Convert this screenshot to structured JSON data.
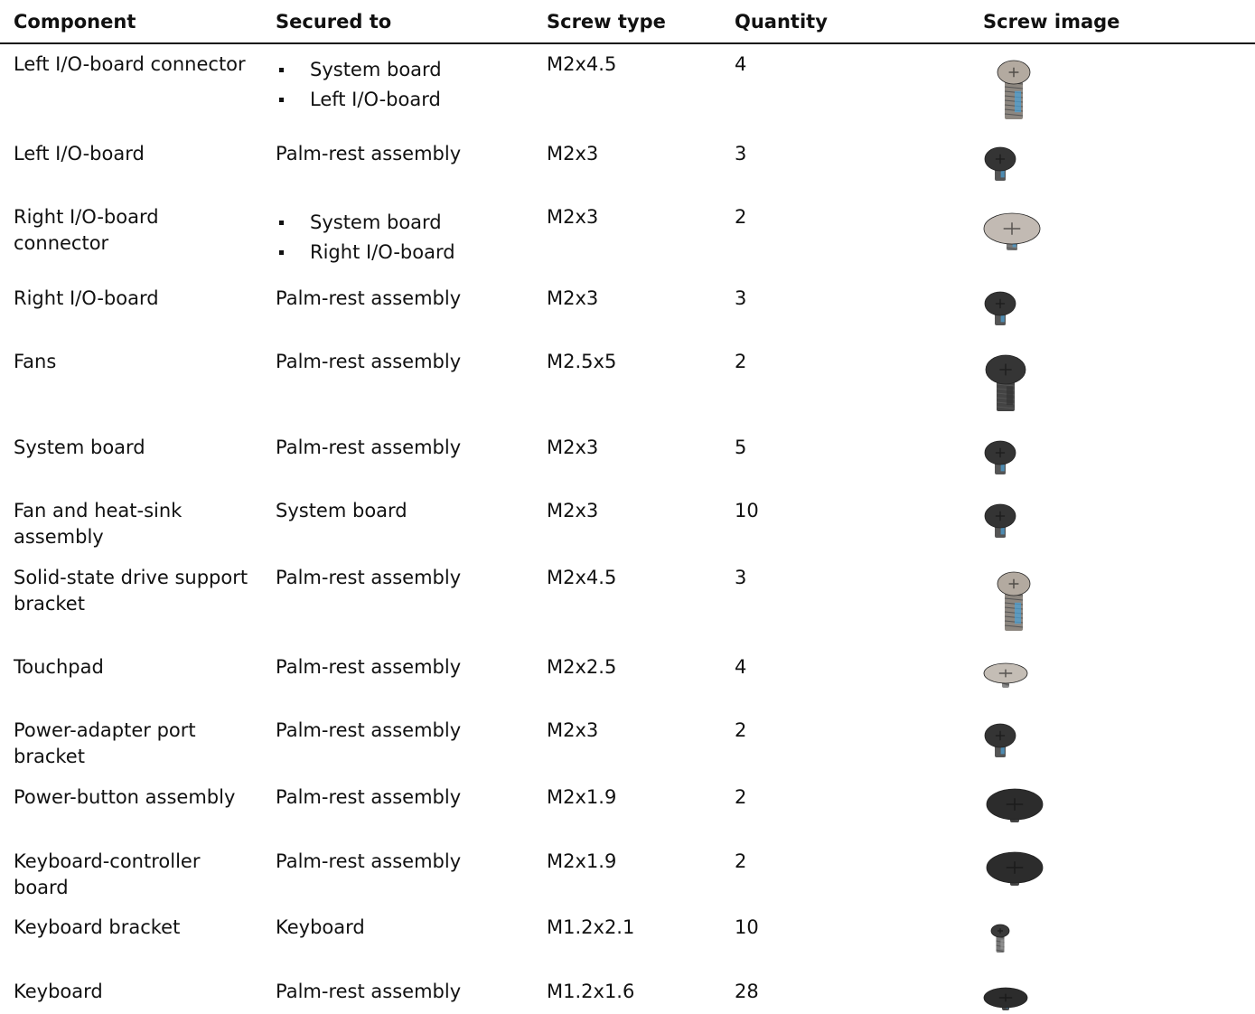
{
  "table": {
    "header": [
      "Component",
      "Secured to",
      "Screw type",
      "Quantity",
      "Screw image"
    ],
    "rows": [
      {
        "component": "Left I/O-board connector",
        "secured_to": [
          "System board",
          "Left I/O-board"
        ],
        "screw_type": "M2x4.5",
        "quantity": "4"
      },
      {
        "component": "Left I/O-board",
        "secured_to": "Palm-rest assembly",
        "screw_type": "M2x3",
        "quantity": "3"
      },
      {
        "component": "Right I/O-board connector",
        "secured_to": [
          "System board",
          "Right I/O-board"
        ],
        "screw_type": "M2x3",
        "quantity": "2"
      },
      {
        "component": "Right I/O-board",
        "secured_to": "Palm-rest assembly",
        "screw_type": "M2x3",
        "quantity": "3"
      },
      {
        "component": "Fans",
        "secured_to": "Palm-rest assembly",
        "screw_type": "M2.5x5",
        "quantity": "2"
      },
      {
        "component": "System board",
        "secured_to": "Palm-rest assembly",
        "screw_type": "M2x3",
        "quantity": "5"
      },
      {
        "component": "Fan and heat-sink assembly",
        "secured_to": "System board",
        "screw_type": "M2x3",
        "quantity": "10"
      },
      {
        "component": "Solid-state drive support bracket",
        "secured_to": "Palm-rest assembly",
        "screw_type": "M2x4.5",
        "quantity": "3"
      },
      {
        "component": "Touchpad",
        "secured_to": "Palm-rest assembly",
        "screw_type": "M2x2.5",
        "quantity": "4"
      },
      {
        "component": "Power-adapter port bracket",
        "secured_to": "Palm-rest assembly",
        "screw_type": "M2x3",
        "quantity": "2"
      },
      {
        "component": "Power-button assembly",
        "secured_to": "Palm-rest assembly",
        "screw_type": "M2x1.9",
        "quantity": "2"
      },
      {
        "component": "Keyboard-controller board",
        "secured_to": "Palm-rest assembly",
        "screw_type": "M2x1.9",
        "quantity": "2"
      },
      {
        "component": "Keyboard bracket",
        "secured_to": "Keyboard",
        "screw_type": "M1.2x2.1",
        "quantity": "10"
      },
      {
        "component": "Keyboard",
        "secured_to": "Palm-rest assembly",
        "screw_type": "M1.2x1.6",
        "quantity": "28"
      }
    ]
  }
}
